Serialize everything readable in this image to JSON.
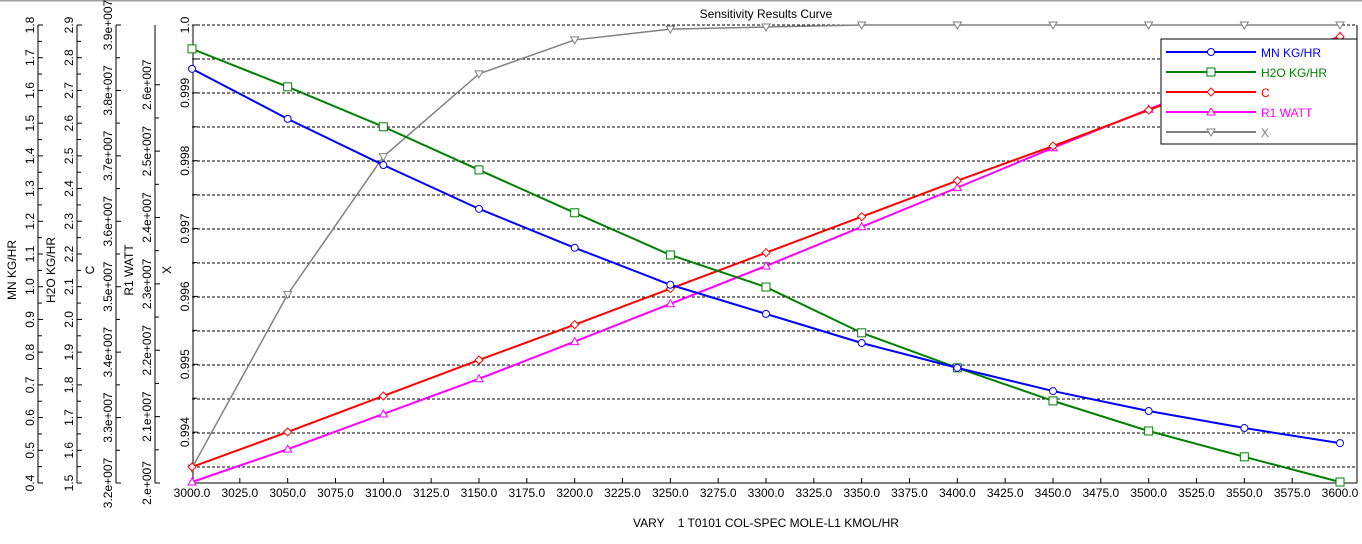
{
  "chart_data": {
    "type": "line",
    "title": "Sensitivity Results Curve",
    "xlabel": "VARY    1 T0101 COL-SPEC MOLE-L1 KMOL/HR",
    "xlim": [
      3000,
      3600
    ],
    "x": [
      3000,
      3050,
      3100,
      3150,
      3200,
      3250,
      3300,
      3350,
      3400,
      3450,
      3500,
      3550,
      3600
    ],
    "x_ticks": [
      "3000.0",
      "3025.0",
      "3050.0",
      "3075.0",
      "3100.0",
      "3125.0",
      "3150.0",
      "3175.0",
      "3200.0",
      "3225.0",
      "3250.0",
      "3275.0",
      "3300.0",
      "3325.0",
      "3350.0",
      "3375.0",
      "3400.0",
      "3425.0",
      "3450.0",
      "3475.0",
      "3500.0",
      "3525.0",
      "3550.0",
      "3575.0",
      "3600.0"
    ],
    "grid": "horizontal dashed",
    "legend_position": "top-right",
    "axes": [
      {
        "label": "MN KG/HR",
        "ylim": [
          0.4,
          1.8
        ],
        "ticks": [
          0.4,
          0.5,
          0.6,
          0.7,
          0.8,
          0.9,
          1.0,
          1.1,
          1.2,
          1.3,
          1.4,
          1.5,
          1.6,
          1.7,
          1.8
        ],
        "tick_labels": [
          "0.4",
          "0.5",
          "0.6",
          "0.7",
          "0.8",
          "0.9",
          "1.0",
          "1.1",
          "1.2",
          "1.3",
          "1.4",
          "1.5",
          "1.6",
          "1.7",
          "1.8"
        ]
      },
      {
        "label": "H2O KG/HR",
        "ylim": [
          1.5,
          2.9
        ],
        "ticks": [
          1.5,
          1.6,
          1.7,
          1.8,
          1.9,
          2.0,
          2.1,
          2.2,
          2.3,
          2.4,
          2.5,
          2.6,
          2.7,
          2.8,
          2.9
        ],
        "tick_labels": [
          "1.5",
          "1.6",
          "1.7",
          "1.8",
          "1.9",
          "2.0",
          "2.1",
          "2.2",
          "2.3",
          "2.4",
          "2.5",
          "2.6",
          "2.7",
          "2.8",
          "2.9"
        ]
      },
      {
        "label": "C",
        "ylim": [
          32000000,
          39000000
        ],
        "ticks": [
          32000000,
          33000000,
          34000000,
          35000000,
          36000000,
          37000000,
          38000000,
          39000000
        ],
        "tick_labels": [
          "3.2e+007",
          "3.3e+007",
          "3.4e+007",
          "3.5e+007",
          "3.6e+007",
          "3.7e+007",
          "3.8e+007",
          "3.9e+007"
        ]
      },
      {
        "label": "R1 WATT",
        "ylim": [
          20000000,
          26900000
        ],
        "ticks": [
          20000000,
          21000000,
          22000000,
          23000000,
          24000000,
          25000000,
          26000000
        ],
        "tick_labels": [
          "2.e+007",
          "2.1e+007",
          "2.2e+007",
          "2.3e+007",
          "2.4e+007",
          "2.5e+007",
          "2.6e+007"
        ]
      },
      {
        "label": "X",
        "ylim": [
          0.99325,
          1.0
        ],
        "ticks": [
          0.994,
          0.995,
          0.996,
          0.997,
          0.998,
          0.999,
          1.0
        ],
        "tick_labels": [
          "0.994",
          "0.995",
          "0.996",
          "0.997",
          "0.998",
          "0.999",
          "1.0"
        ]
      }
    ],
    "series": [
      {
        "name": "MN KG/HR",
        "axis": 0,
        "color": "#0000ff",
        "marker": "circle",
        "values": [
          1.666,
          1.513,
          1.372,
          1.238,
          1.119,
          1.006,
          0.917,
          0.828,
          0.752,
          0.681,
          0.62,
          0.568,
          0.522
        ]
      },
      {
        "name": "H2O KG/HR",
        "axis": 1,
        "color": "#008000",
        "marker": "square",
        "values": [
          2.827,
          2.711,
          2.589,
          2.457,
          2.326,
          2.197,
          2.099,
          1.959,
          1.852,
          1.751,
          1.659,
          1.58,
          1.503
        ]
      },
      {
        "name": "C",
        "axis": 2,
        "color": "#ff0000",
        "marker": "diamond",
        "values": [
          32245000,
          32780000,
          33330000,
          33880000,
          34420000,
          34970000,
          35520000,
          36070000,
          36620000,
          37150000,
          37700000,
          38250000,
          38820000
        ]
      },
      {
        "name": "R1 WATT",
        "axis": 3,
        "color": "#ff00ff",
        "marker": "triangle-up",
        "values": [
          20015000,
          20510000,
          21040000,
          21570000,
          22130000,
          22700000,
          23270000,
          23860000,
          24450000,
          25050000,
          25630000,
          26200000,
          26730000
        ]
      },
      {
        "name": "X",
        "axis": 4,
        "color": "#808080",
        "marker": "triangle-down",
        "values": [
          0.99347,
          0.99603,
          0.99806,
          0.99928,
          0.99978,
          0.99994,
          0.99997,
          1.0,
          1.0,
          1.0,
          1.0,
          1.0,
          1.0
        ]
      }
    ]
  }
}
